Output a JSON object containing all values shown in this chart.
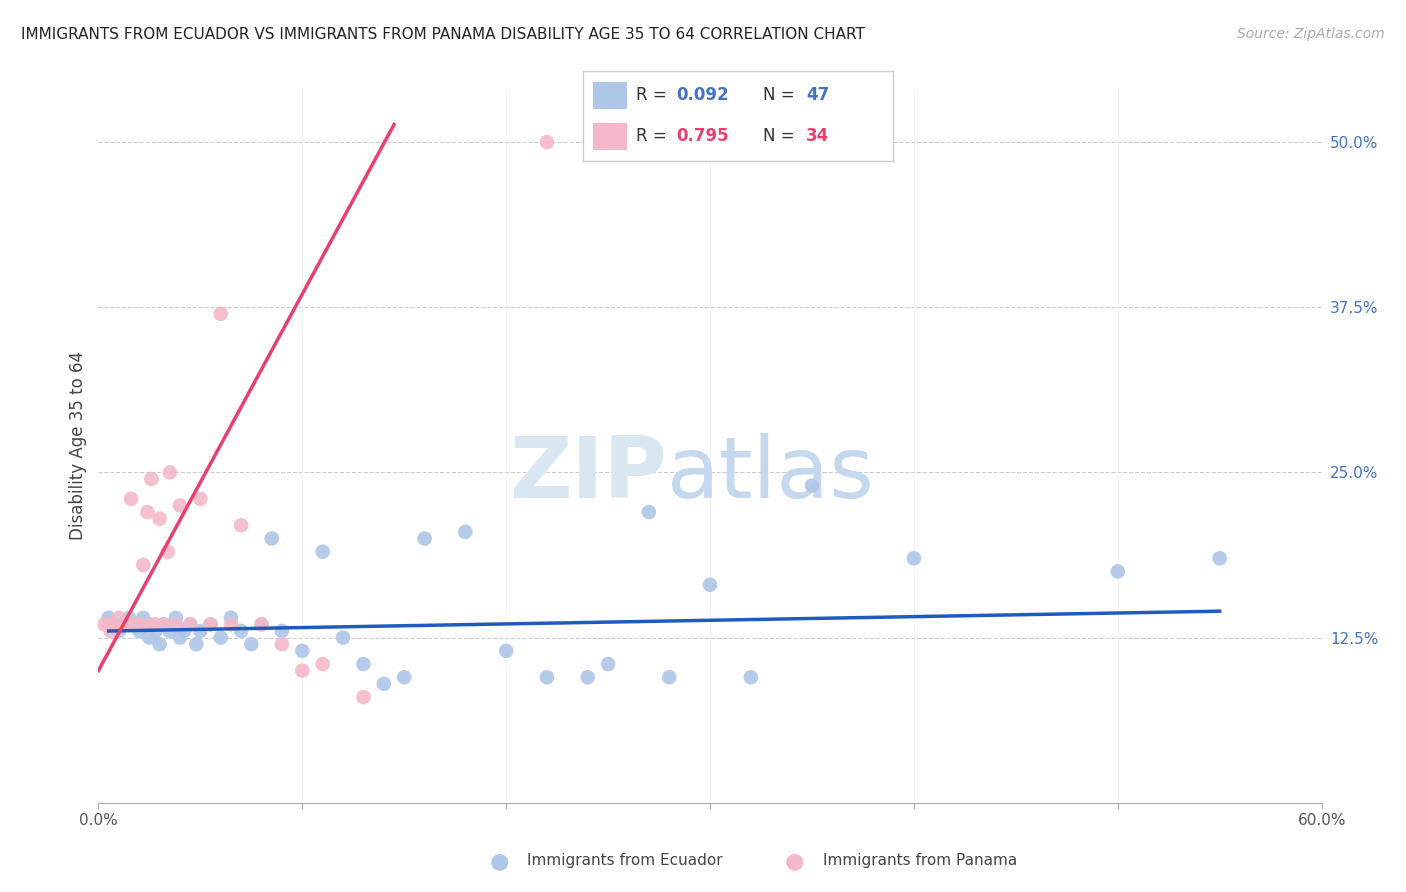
{
  "title": "IMMIGRANTS FROM ECUADOR VS IMMIGRANTS FROM PANAMA DISABILITY AGE 35 TO 64 CORRELATION CHART",
  "source": "Source: ZipAtlas.com",
  "ylabel": "Disability Age 35 to 64",
  "xlim": [
    0.0,
    0.6
  ],
  "ylim": [
    0.0,
    0.54
  ],
  "x_tick_labels": [
    "0.0%",
    "",
    "",
    "",
    "",
    "",
    "60.0%"
  ],
  "x_ticks": [
    0.0,
    0.1,
    0.2,
    0.3,
    0.4,
    0.5,
    0.6
  ],
  "y_tick_labels_right": [
    "50.0%",
    "37.5%",
    "25.0%",
    "12.5%"
  ],
  "y_ticks_right": [
    0.5,
    0.375,
    0.25,
    0.125
  ],
  "ecuador_color": "#aec6e8",
  "panama_color": "#f4b8c8",
  "ecuador_line_color": "#1f5bbd",
  "panama_line_color": "#e8406e",
  "ecuador_R": "0.092",
  "ecuador_N": "47",
  "panama_R": "0.795",
  "panama_N": "34",
  "ecuador_scatter_x": [
    0.005,
    0.008,
    0.01,
    0.015,
    0.018,
    0.02,
    0.022,
    0.025,
    0.025,
    0.028,
    0.03,
    0.032,
    0.035,
    0.038,
    0.04,
    0.042,
    0.045,
    0.048,
    0.05,
    0.055,
    0.06,
    0.065,
    0.07,
    0.075,
    0.08,
    0.085,
    0.09,
    0.1,
    0.11,
    0.12,
    0.13,
    0.14,
    0.15,
    0.16,
    0.18,
    0.2,
    0.22,
    0.24,
    0.25,
    0.27,
    0.28,
    0.3,
    0.32,
    0.35,
    0.4,
    0.5,
    0.55
  ],
  "ecuador_scatter_y": [
    0.14,
    0.135,
    0.13,
    0.14,
    0.135,
    0.13,
    0.14,
    0.135,
    0.125,
    0.13,
    0.12,
    0.135,
    0.13,
    0.14,
    0.125,
    0.13,
    0.135,
    0.12,
    0.13,
    0.135,
    0.125,
    0.14,
    0.13,
    0.12,
    0.135,
    0.2,
    0.13,
    0.115,
    0.19,
    0.125,
    0.105,
    0.09,
    0.095,
    0.2,
    0.205,
    0.115,
    0.095,
    0.095,
    0.105,
    0.22,
    0.095,
    0.165,
    0.095,
    0.24,
    0.185,
    0.175,
    0.185
  ],
  "panama_scatter_x": [
    0.003,
    0.005,
    0.006,
    0.008,
    0.01,
    0.012,
    0.013,
    0.015,
    0.016,
    0.018,
    0.02,
    0.022,
    0.024,
    0.025,
    0.026,
    0.028,
    0.03,
    0.032,
    0.034,
    0.035,
    0.038,
    0.04,
    0.045,
    0.05,
    0.055,
    0.06,
    0.065,
    0.07,
    0.08,
    0.09,
    0.1,
    0.11,
    0.13,
    0.22
  ],
  "panama_scatter_y": [
    0.135,
    0.135,
    0.13,
    0.135,
    0.14,
    0.135,
    0.135,
    0.135,
    0.23,
    0.135,
    0.135,
    0.18,
    0.22,
    0.135,
    0.245,
    0.135,
    0.215,
    0.135,
    0.19,
    0.25,
    0.135,
    0.225,
    0.135,
    0.23,
    0.135,
    0.37,
    0.135,
    0.21,
    0.135,
    0.12,
    0.1,
    0.105,
    0.08,
    0.5
  ],
  "panama_line_x": [
    0.0,
    0.145
  ],
  "panama_line_y_intercept": 0.1,
  "panama_line_slope": 2.85,
  "ecuador_line_x": [
    0.005,
    0.55
  ],
  "ecuador_line_y_start": 0.13,
  "ecuador_line_y_end": 0.145
}
